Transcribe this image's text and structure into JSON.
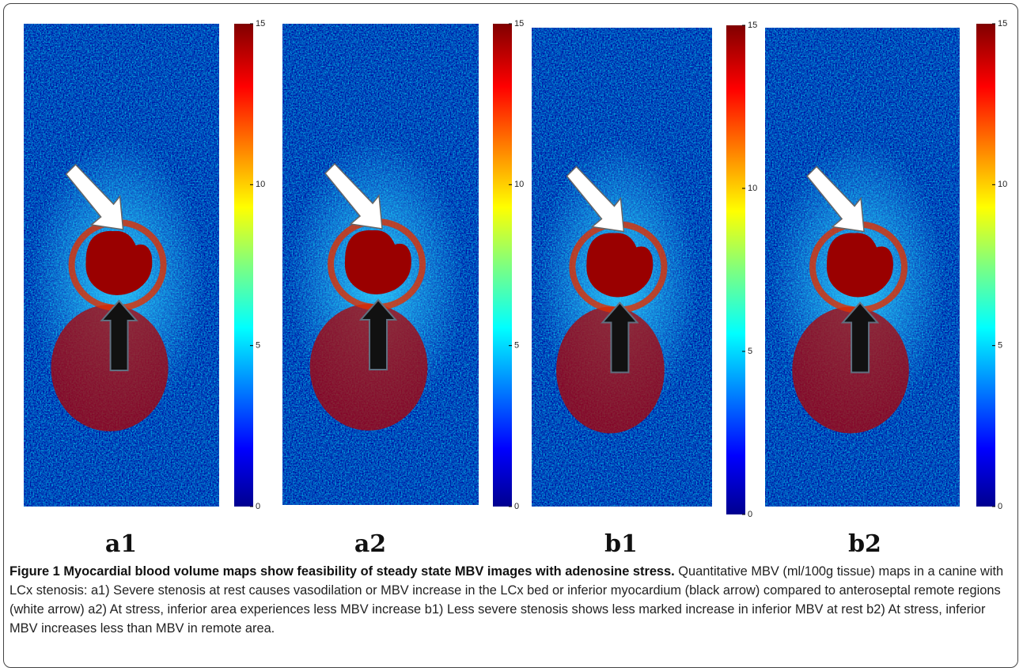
{
  "figure": {
    "panels": [
      {
        "label": "a1",
        "colorbar_ticks": [
          0,
          5,
          10,
          15
        ]
      },
      {
        "label": "a2",
        "colorbar_ticks": [
          0,
          5,
          10,
          15
        ]
      },
      {
        "label": "b1",
        "colorbar_ticks": [
          0,
          5,
          10,
          15
        ]
      },
      {
        "label": "b2",
        "colorbar_ticks": [
          0,
          5,
          10,
          15
        ]
      }
    ],
    "caption": {
      "label": "Figure 1",
      "title": "Myocardial blood volume maps show feasibility of steady state MBV images with adenosine stress.",
      "text": "Quantitative MBV (ml/100g tissue) maps in a canine with LCx stenosis: a1) Severe stenosis at rest causes vasodilation or MBV increase in the LCx bed or inferior myocardium (black arrow) compared to anteroseptal remote regions (white arrow) a2) At stress, inferior area experiences less MBV increase b1) Less severe stenosis shows less marked increase in inferior MBV at rest b2) At stress, inferior MBV increases less than MBV in remote area."
    }
  }
}
